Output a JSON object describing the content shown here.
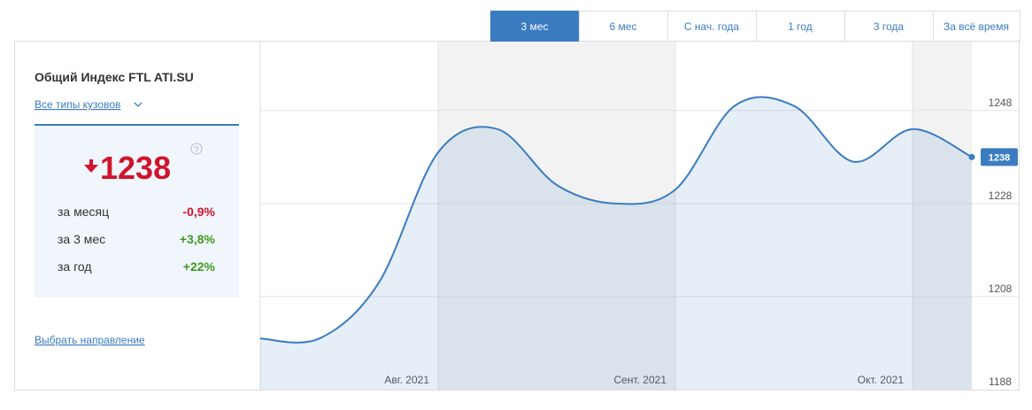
{
  "tabs": [
    "3 мес",
    "6 мес",
    "С нач. года",
    "1 год",
    "3 года",
    "За всё время"
  ],
  "active_tab": 0,
  "panel": {
    "title": "Общий Индекс FTL ATI.SU",
    "filter": "Все типы кузовов",
    "value": "1238",
    "help": "?",
    "changes": [
      {
        "label": "за месяц",
        "value": "-0,9%",
        "color": "#d0142c"
      },
      {
        "label": "за 3 мес",
        "value": "+3,8%",
        "color": "#3f9a1f"
      },
      {
        "label": "за год",
        "value": "+22%",
        "color": "#3f9a1f"
      }
    ],
    "link": "Выбрать направление"
  },
  "chart_data": {
    "type": "area",
    "color": "#3b7cc1",
    "x": [
      0,
      1,
      2,
      3,
      4,
      5,
      6,
      7,
      8,
      9,
      10,
      11,
      12
    ],
    "values": [
      1199,
      1199,
      1211,
      1239,
      1244,
      1232,
      1228,
      1231,
      1249,
      1249,
      1237,
      1244,
      1238
    ],
    "xlim": [
      0,
      12
    ],
    "xticks": [
      {
        "value": 3,
        "label": "Авг. 2021"
      },
      {
        "value": 7,
        "label": "Сент. 2021"
      },
      {
        "value": 11,
        "label": "Окт. 2021"
      }
    ],
    "ylim": [
      1188,
      1263
    ],
    "yticks": [
      1188,
      1208,
      1228,
      1248
    ],
    "grid": true
  }
}
